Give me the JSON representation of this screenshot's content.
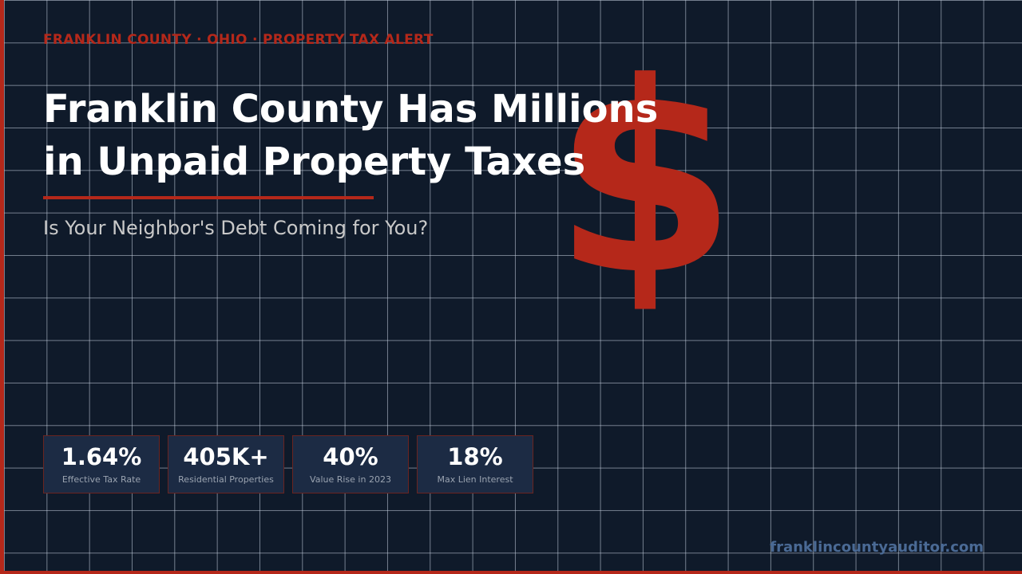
{
  "header": {
    "kicker": "FRANKLIN COUNTY · OHIO · PROPERTY TAX ALERT"
  },
  "title": {
    "lines": [
      "Franklin County Has Millions",
      "in Unpaid Property Taxes"
    ]
  },
  "symbol": "$",
  "subtitle": "Is Your Neighbor's Debt Coming for You?",
  "stats": [
    {
      "value": "1.64%",
      "label": "Effective Tax Rate"
    },
    {
      "value": "405K+",
      "label": "Residential Properties"
    },
    {
      "value": "40%",
      "label": "Value Rise in 2023"
    },
    {
      "value": "18%",
      "label": "Max Lien Interest"
    }
  ],
  "footer": {
    "url": "franklincountyauditor.com"
  }
}
